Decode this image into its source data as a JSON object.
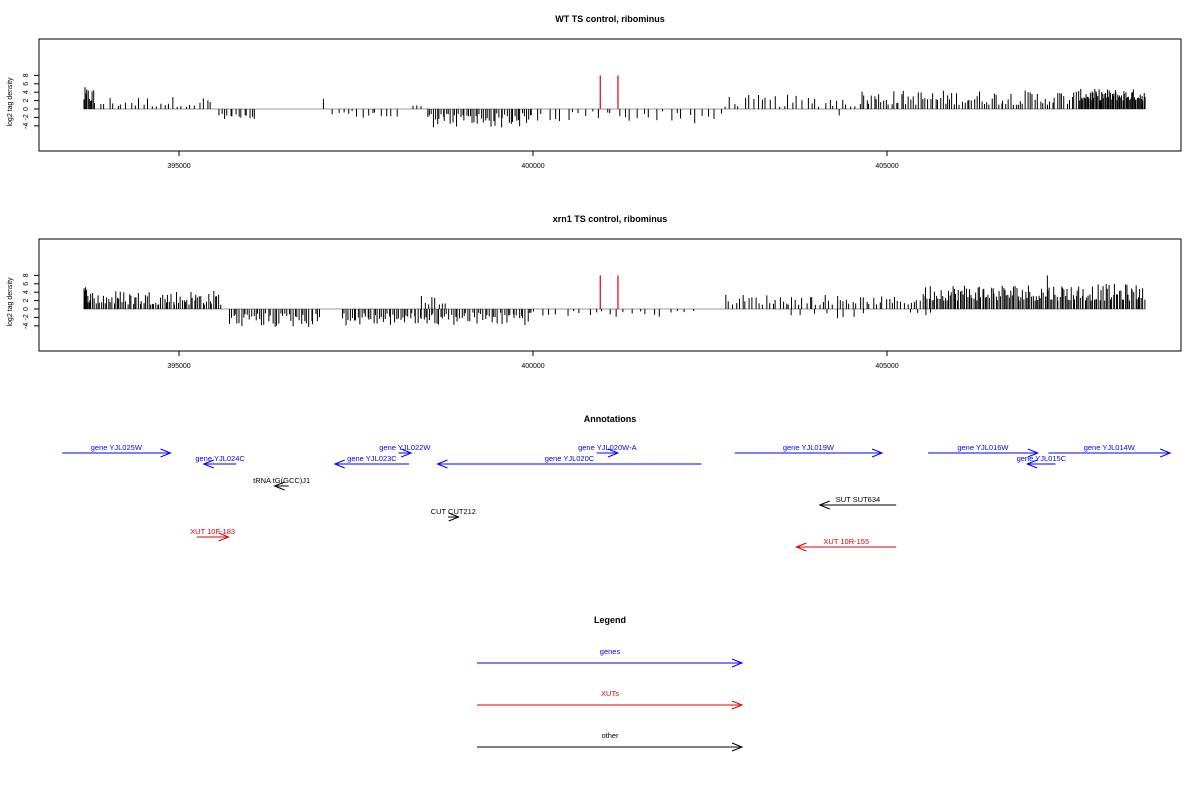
{
  "chart_data": [
    {
      "type": "bar",
      "title": "WT TS control, ribominus",
      "xlabel": "",
      "ylabel": "log2 tag density",
      "xlim": [
        393000,
        409000
      ],
      "ylim": [
        -5,
        8.5
      ],
      "x_ticks": [
        395000,
        400000,
        405000
      ],
      "x_tick_labels": [
        "395000",
        "400000",
        "405000"
      ],
      "y_ticks": [
        -4,
        -2,
        0,
        2,
        4,
        6,
        8
      ],
      "y_tick_labels": [
        "-4",
        "-2",
        "0",
        "2",
        "4",
        "6",
        "8"
      ],
      "markers": {
        "color": "#e00000",
        "x": [
          400950,
          401200
        ],
        "y_top": 8
      },
      "segments": [
        {
          "x0": 393650,
          "x1": 393800,
          "lo": 1.5,
          "hi": 5.2,
          "count": 10,
          "sign": 1
        },
        {
          "x0": 393800,
          "x1": 395500,
          "lo": 0.5,
          "hi": 3.0,
          "count": 28,
          "sign": 1
        },
        {
          "x0": 395550,
          "x1": 396100,
          "lo": 0.8,
          "hi": 2.5,
          "count": 14,
          "sign": -1
        },
        {
          "x0": 397000,
          "x1": 397080,
          "lo": 2.4,
          "hi": 2.6,
          "count": 1,
          "sign": 1
        },
        {
          "x0": 397150,
          "x1": 398100,
          "lo": 0.5,
          "hi": 2.6,
          "count": 14,
          "sign": -1
        },
        {
          "x0": 398300,
          "x1": 398450,
          "lo": 0.6,
          "hi": 1.0,
          "count": 3,
          "sign": 1
        },
        {
          "x0": 398500,
          "x1": 400000,
          "lo": 1.0,
          "hi": 4.5,
          "count": 55,
          "sign": -1
        },
        {
          "x0": 400000,
          "x1": 402700,
          "lo": 0.5,
          "hi": 3.5,
          "count": 30,
          "sign": -1
        },
        {
          "x0": 402700,
          "x1": 404600,
          "lo": 0.5,
          "hi": 3.4,
          "count": 30,
          "sign": 1
        },
        {
          "x0": 404300,
          "x1": 404350,
          "lo": 1.5,
          "hi": 1.7,
          "count": 1,
          "sign": -1
        },
        {
          "x0": 404600,
          "x1": 407700,
          "lo": 1.0,
          "hi": 4.5,
          "count": 90,
          "sign": 1
        },
        {
          "x0": 407700,
          "x1": 408650,
          "lo": 2.0,
          "hi": 4.8,
          "count": 70,
          "sign": 1
        }
      ]
    },
    {
      "type": "bar",
      "title": "xrn1 TS control, ribominus",
      "xlabel": "",
      "ylabel": "log2 tag density",
      "xlim": [
        393000,
        409000
      ],
      "ylim": [
        -5,
        8.5
      ],
      "x_ticks": [
        395000,
        400000,
        405000
      ],
      "x_tick_labels": [
        "395000",
        "400000",
        "405000"
      ],
      "y_ticks": [
        -4,
        -2,
        0,
        2,
        4,
        6,
        8
      ],
      "y_tick_labels": [
        "-4",
        "-2",
        "0",
        "2",
        "4",
        "6",
        "8"
      ],
      "markers": {
        "color": "#e00000",
        "x": [
          400950,
          401200
        ],
        "y_top": 8
      },
      "segments": [
        {
          "x0": 393650,
          "x1": 393750,
          "lo": 1.5,
          "hi": 5.8,
          "count": 8,
          "sign": 1
        },
        {
          "x0": 393750,
          "x1": 395600,
          "lo": 1.0,
          "hi": 4.5,
          "count": 75,
          "sign": 1
        },
        {
          "x0": 395700,
          "x1": 397000,
          "lo": 1.0,
          "hi": 4.4,
          "count": 45,
          "sign": -1
        },
        {
          "x0": 397300,
          "x1": 398800,
          "lo": 1.0,
          "hi": 4.0,
          "count": 55,
          "sign": -1
        },
        {
          "x0": 398400,
          "x1": 398800,
          "lo": 1.0,
          "hi": 3.2,
          "count": 8,
          "sign": 1
        },
        {
          "x0": 398800,
          "x1": 400000,
          "lo": 0.8,
          "hi": 4.0,
          "count": 40,
          "sign": -1
        },
        {
          "x0": 400000,
          "x1": 402300,
          "lo": 0.5,
          "hi": 2.0,
          "count": 22,
          "sign": -1
        },
        {
          "x0": 402700,
          "x1": 404600,
          "lo": 1.0,
          "hi": 3.5,
          "count": 40,
          "sign": 1
        },
        {
          "x0": 403600,
          "x1": 404800,
          "lo": 1.0,
          "hi": 2.2,
          "count": 8,
          "sign": -1
        },
        {
          "x0": 404600,
          "x1": 405500,
          "lo": 1.0,
          "hi": 3.0,
          "count": 20,
          "sign": 1
        },
        {
          "x0": 405300,
          "x1": 405700,
          "lo": 0.8,
          "hi": 1.5,
          "count": 4,
          "sign": -1
        },
        {
          "x0": 405500,
          "x1": 408650,
          "lo": 2.0,
          "hi": 6.0,
          "count": 150,
          "sign": 1
        },
        {
          "x0": 407250,
          "x1": 407280,
          "lo": 8.0,
          "hi": 8.0,
          "count": 1,
          "sign": 1
        }
      ]
    }
  ],
  "annotations": {
    "title": "Annotations",
    "features": [
      {
        "label": "gene YJL025W",
        "start": 393350,
        "end": 394880,
        "color": "#0000ff",
        "row": 1
      },
      {
        "label": "gene YJL024C",
        "start": 395810,
        "end": 395350,
        "color": "#0000ff",
        "row": 2
      },
      {
        "label": "gene YJL022W",
        "start": 398100,
        "end": 398280,
        "color": "#0000ff",
        "row": 1
      },
      {
        "label": "gene YJL023C",
        "start": 398250,
        "end": 397200,
        "color": "#0000ff",
        "row": 2
      },
      {
        "label": "gene YJL020W-A",
        "start": 400900,
        "end": 401200,
        "color": "#0000ff",
        "row": 1
      },
      {
        "label": "gene YJL020C",
        "start": 402380,
        "end": 398650,
        "color": "#0000ff",
        "row": 2
      },
      {
        "label": "gene YJL019W",
        "start": 402850,
        "end": 404930,
        "color": "#0000ff",
        "row": 1
      },
      {
        "label": "gene YJL016W",
        "start": 405580,
        "end": 407130,
        "color": "#0000ff",
        "row": 1
      },
      {
        "label": "gene YJL015C",
        "start": 407380,
        "end": 406980,
        "color": "#0000ff",
        "row": 2
      },
      {
        "label": "gene YJL014W",
        "start": 407280,
        "end": 409000,
        "color": "#0000ff",
        "row": 1
      },
      {
        "label": "tRNA tG(GCC)J1",
        "start": 396550,
        "end": 396350,
        "color": "#000000",
        "row": 3
      },
      {
        "label": "CUT CUT212",
        "start": 398800,
        "end": 398950,
        "color": "#000000",
        "row": 4
      },
      {
        "label": "SUT SUT634",
        "start": 405130,
        "end": 404050,
        "color": "#000000",
        "row": 5
      },
      {
        "label": "XUT 10F-183",
        "start": 395250,
        "end": 395700,
        "color": "#e00000",
        "row": 6
      },
      {
        "label": "XUT 10R-155",
        "start": 405130,
        "end": 403720,
        "color": "#e00000",
        "row": 7
      }
    ]
  },
  "legend": {
    "title": "Legend",
    "items": [
      {
        "label": "genes",
        "color": "#0000ff"
      },
      {
        "label": "XUTs",
        "color": "#e00000"
      },
      {
        "label": "other",
        "color": "#000000"
      }
    ]
  }
}
